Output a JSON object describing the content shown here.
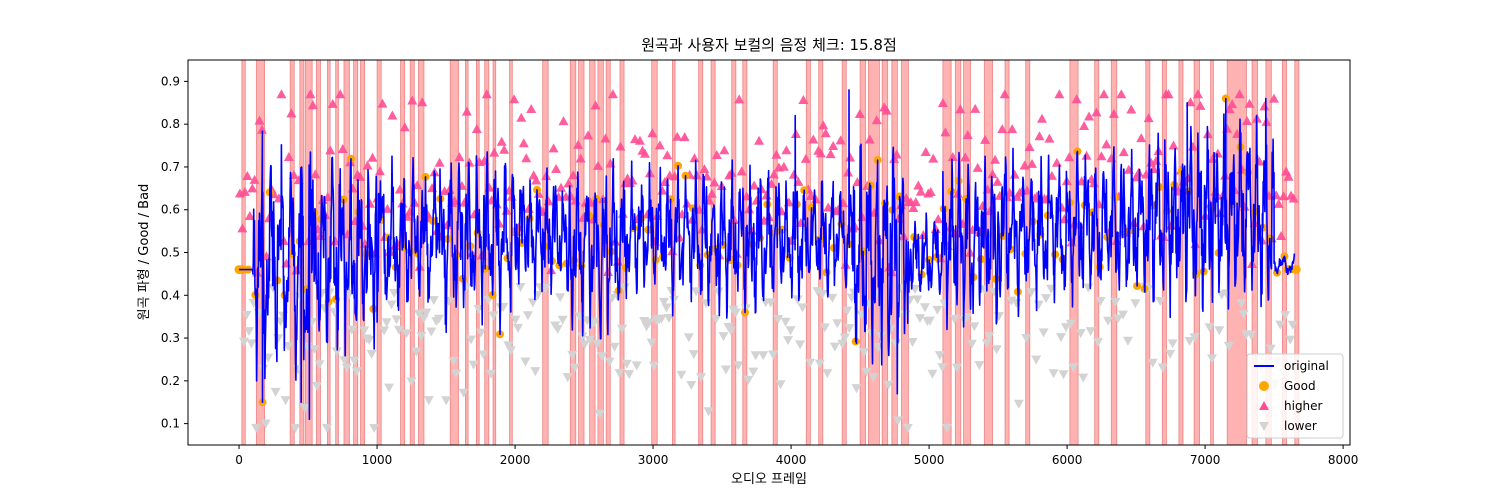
{
  "chart_data": {
    "type": "line",
    "title": "원곡과 사용자 보컬의 음정 체크: 15.8점",
    "xlabel": "오디오 프레임",
    "ylabel": "원곡 파형 / Good / Bad",
    "xlim": [
      -370,
      8050
    ],
    "ylim": [
      0.05,
      0.95
    ],
    "x_ticks": [
      0,
      1000,
      2000,
      3000,
      4000,
      5000,
      6000,
      7000,
      8000
    ],
    "y_ticks": [
      0.1,
      0.2,
      0.3,
      0.4,
      0.5,
      0.6,
      0.7,
      0.8,
      0.9
    ],
    "legend_position": "lower-right",
    "grid": false,
    "colors": {
      "original": "#0000ff",
      "good": "#ffa500",
      "higher": "#ff4d94",
      "lower": "#d3d3d3",
      "bad_band": "#ff7f7f"
    },
    "legend": [
      {
        "label": "original",
        "marker": "line",
        "color": "#0000ff"
      },
      {
        "label": "Good",
        "marker": "circle",
        "color": "#ffa500"
      },
      {
        "label": "higher",
        "marker": "triangle-up",
        "color": "#ff4d94"
      },
      {
        "label": "lower",
        "marker": "triangle-down",
        "color": "#d3d3d3"
      }
    ],
    "bad_frame_ranges": [
      [
        20,
        45
      ],
      [
        125,
        185
      ],
      [
        370,
        400
      ],
      [
        440,
        470
      ],
      [
        480,
        530
      ],
      [
        560,
        590
      ],
      [
        640,
        660
      ],
      [
        700,
        720
      ],
      [
        760,
        800
      ],
      [
        830,
        860
      ],
      [
        880,
        910
      ],
      [
        1000,
        1030
      ],
      [
        1170,
        1200
      ],
      [
        1240,
        1270
      ],
      [
        1300,
        1340
      ],
      [
        1530,
        1590
      ],
      [
        1640,
        1660
      ],
      [
        1720,
        1740
      ],
      [
        1780,
        1810
      ],
      [
        1840,
        1860
      ],
      [
        1960,
        1980
      ],
      [
        2200,
        2240
      ],
      [
        2400,
        2440
      ],
      [
        2460,
        2500
      ],
      [
        2540,
        2580
      ],
      [
        2600,
        2640
      ],
      [
        2660,
        2690
      ],
      [
        2760,
        2790
      ],
      [
        2990,
        3030
      ],
      [
        3140,
        3160
      ],
      [
        3330,
        3360
      ],
      [
        3420,
        3450
      ],
      [
        3570,
        3600
      ],
      [
        3650,
        3680
      ],
      [
        3870,
        3900
      ],
      [
        4110,
        4140
      ],
      [
        4200,
        4230
      ],
      [
        4370,
        4400
      ],
      [
        4500,
        4540
      ],
      [
        4560,
        4640
      ],
      [
        4660,
        4700
      ],
      [
        4730,
        4770
      ],
      [
        4800,
        4850
      ],
      [
        5100,
        5160
      ],
      [
        5190,
        5230
      ],
      [
        5250,
        5300
      ],
      [
        5400,
        5460
      ],
      [
        5550,
        5580
      ],
      [
        5700,
        5730
      ],
      [
        6020,
        6080
      ],
      [
        6200,
        6230
      ],
      [
        6320,
        6360
      ],
      [
        6570,
        6600
      ],
      [
        6690,
        6720
      ],
      [
        6810,
        6840
      ],
      [
        6920,
        6960
      ],
      [
        7040,
        7060
      ],
      [
        7160,
        7300
      ],
      [
        7340,
        7380
      ],
      [
        7440,
        7480
      ],
      [
        7560,
        7590
      ],
      [
        7650,
        7680
      ]
    ],
    "segments": [
      {
        "x0": 0,
        "x1": 100,
        "mean": 0.46,
        "amp": 0.0,
        "period": 40
      },
      {
        "x0": 100,
        "x1": 550,
        "mean": 0.48,
        "amp": 0.24,
        "period": 24
      },
      {
        "x0": 550,
        "x1": 1000,
        "mean": 0.49,
        "amp": 0.19,
        "period": 22
      },
      {
        "x0": 1000,
        "x1": 1450,
        "mean": 0.53,
        "amp": 0.15,
        "period": 26
      },
      {
        "x0": 1450,
        "x1": 2000,
        "mean": 0.53,
        "amp": 0.16,
        "period": 22
      },
      {
        "x0": 2000,
        "x1": 2400,
        "mean": 0.55,
        "amp": 0.12,
        "period": 20
      },
      {
        "x0": 2400,
        "x1": 2800,
        "mean": 0.51,
        "amp": 0.17,
        "period": 22
      },
      {
        "x0": 2800,
        "x1": 3300,
        "mean": 0.54,
        "amp": 0.13,
        "period": 22
      },
      {
        "x0": 3300,
        "x1": 3900,
        "mean": 0.53,
        "amp": 0.14,
        "period": 22
      },
      {
        "x0": 3900,
        "x1": 4450,
        "mean": 0.53,
        "amp": 0.12,
        "period": 22
      },
      {
        "x0": 4450,
        "x1": 4850,
        "mean": 0.5,
        "amp": 0.2,
        "period": 20
      },
      {
        "x0": 4850,
        "x1": 5100,
        "mean": 0.49,
        "amp": 0.08,
        "period": 24
      },
      {
        "x0": 5100,
        "x1": 5500,
        "mean": 0.53,
        "amp": 0.16,
        "period": 20
      },
      {
        "x0": 5500,
        "x1": 6000,
        "mean": 0.55,
        "amp": 0.15,
        "period": 22
      },
      {
        "x0": 6000,
        "x1": 6600,
        "mean": 0.56,
        "amp": 0.14,
        "period": 22
      },
      {
        "x0": 6600,
        "x1": 7100,
        "mean": 0.58,
        "amp": 0.17,
        "period": 20
      },
      {
        "x0": 7100,
        "x1": 7500,
        "mean": 0.58,
        "amp": 0.17,
        "period": 20
      },
      {
        "x0": 7500,
        "x1": 7650,
        "mean": 0.47,
        "amp": 0.02,
        "period": 30
      }
    ],
    "peaks": [
      {
        "x": 170,
        "y": 0.15
      },
      {
        "x": 450,
        "y": 0.15
      },
      {
        "x": 510,
        "y": 0.11
      },
      {
        "x": 4770,
        "y": 0.17
      },
      {
        "x": 4590,
        "y": 0.24
      },
      {
        "x": 4030,
        "y": 0.82
      },
      {
        "x": 4420,
        "y": 0.88
      },
      {
        "x": 6870,
        "y": 0.85
      },
      {
        "x": 7150,
        "y": 0.86
      },
      {
        "x": 7440,
        "y": 0.86
      }
    ]
  }
}
